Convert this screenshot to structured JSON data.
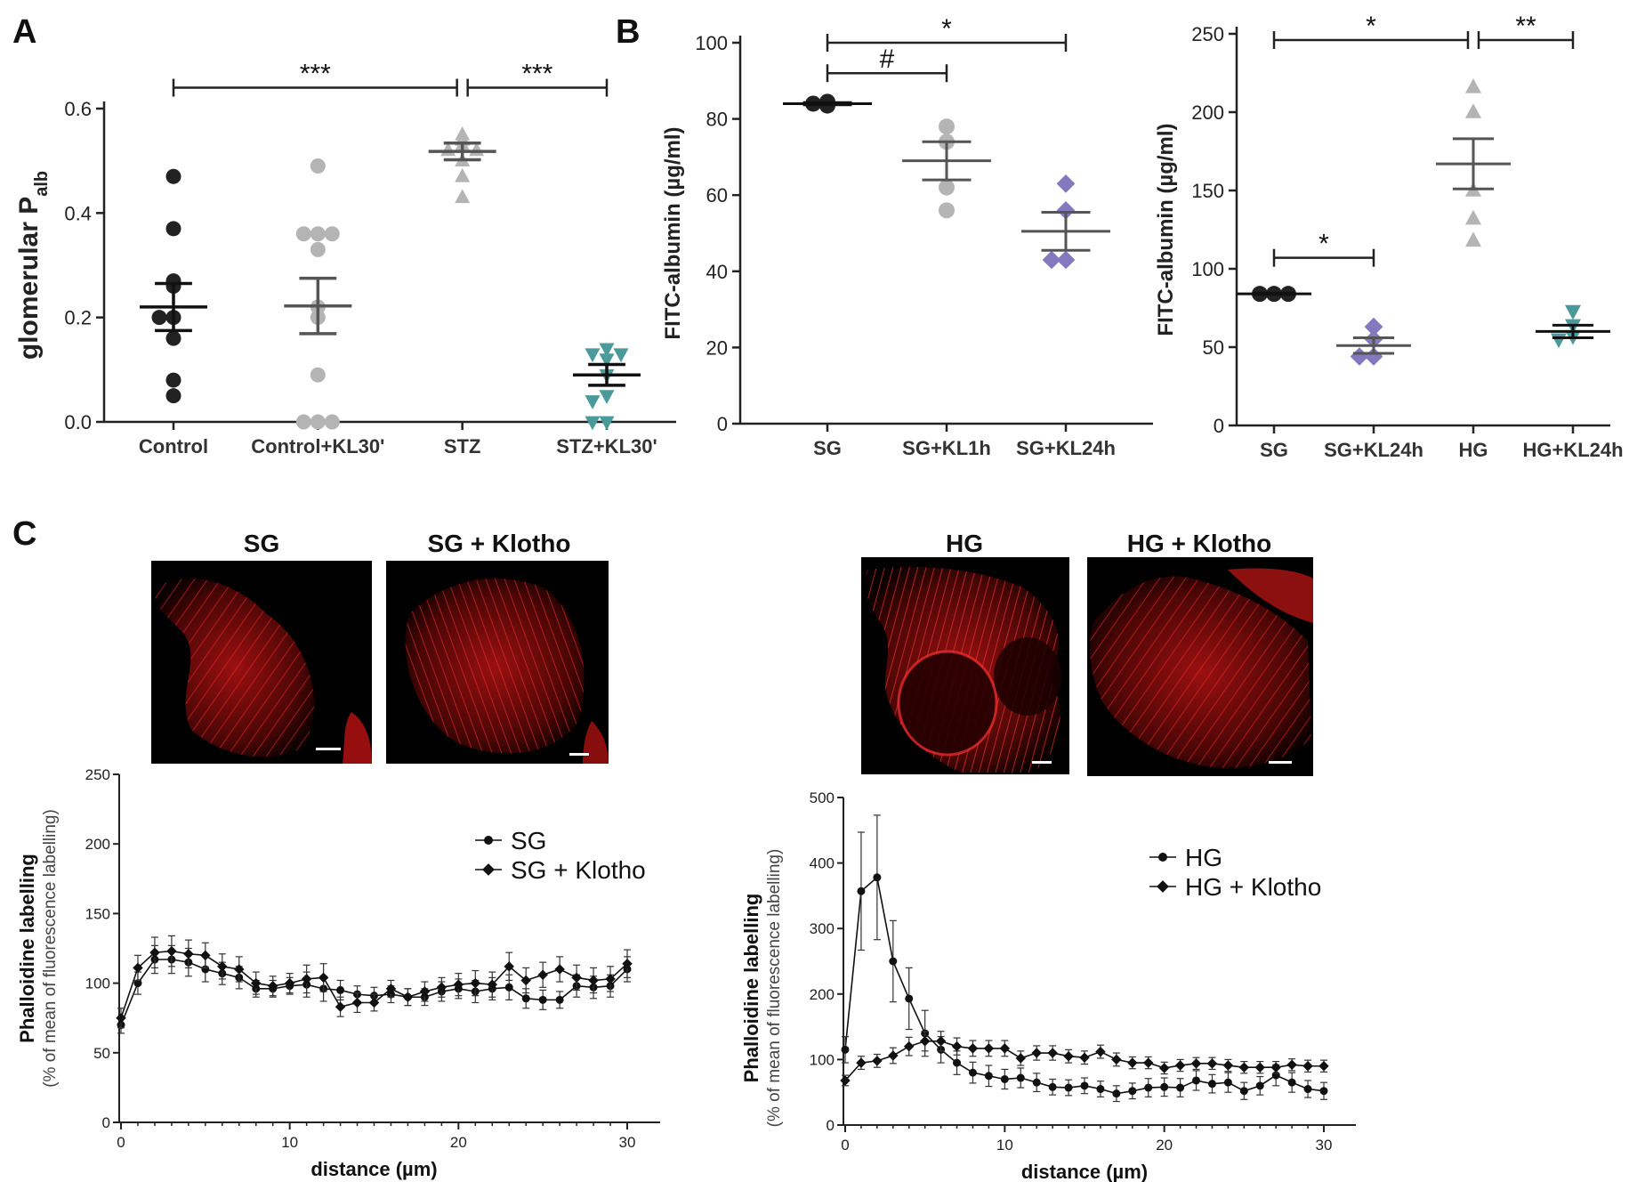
{
  "panel_letters": [
    "A",
    "B",
    "C"
  ],
  "colors": {
    "black": "#222222",
    "grey": "#b4b4b4",
    "teal": "#4a9a9c",
    "purple": "#8478bf",
    "image_red": "#e01818"
  },
  "chart_data": [
    {
      "id": "A",
      "type": "scatter",
      "title": "",
      "ylabel": "glomerular P",
      "ylabel_subscript": "alb",
      "ylim": [
        0,
        0.6
      ],
      "yticks": [
        "0.0",
        "0.2",
        "0.4",
        "0.6"
      ],
      "categories": [
        "Control",
        "Control+KL30'",
        "STZ",
        "STZ+KL30'"
      ],
      "groups": [
        {
          "name": "Control",
          "marker": "circle",
          "color": "black",
          "points": [
            0.47,
            0.37,
            0.27,
            0.26,
            0.2,
            0.2,
            0.16,
            0.08,
            0.05
          ],
          "mean": 0.22,
          "sem": 0.045
        },
        {
          "name": "Control+KL30'",
          "marker": "circle",
          "color": "grey",
          "points": [
            0.49,
            0.36,
            0.36,
            0.36,
            0.33,
            0.2,
            0.22,
            0.09,
            0.0,
            0.0,
            0.0
          ],
          "mean": 0.222,
          "sem": 0.053
        },
        {
          "name": "STZ",
          "marker": "triangle-up",
          "color": "grey",
          "points": [
            0.55,
            0.54,
            0.53,
            0.52,
            0.52,
            0.5,
            0.47,
            0.43
          ],
          "mean": 0.518,
          "sem": 0.016
        },
        {
          "name": "STZ+KL30'",
          "marker": "triangle-down",
          "color": "teal",
          "points": [
            0.14,
            0.13,
            0.13,
            0.12,
            0.09,
            0.05,
            0.04,
            0.0,
            0.0
          ],
          "mean": 0.09,
          "sem": 0.02
        }
      ],
      "brackets": [
        {
          "from": 0,
          "to": 2,
          "y": 0.64,
          "label": "***"
        },
        {
          "from": 2,
          "to": 3,
          "y": 0.64,
          "label": "***"
        }
      ]
    },
    {
      "id": "B-left",
      "type": "scatter",
      "title": "",
      "ylabel": "FITC-albumin (µg/ml)",
      "ylim": [
        0,
        100
      ],
      "yticks": [
        "0",
        "20",
        "40",
        "60",
        "80",
        "100"
      ],
      "categories": [
        "SG",
        "SG+KL1h",
        "SG+KL24h"
      ],
      "groups": [
        {
          "name": "SG",
          "marker": "circle",
          "color": "black",
          "points": [
            84.5,
            83.5,
            84
          ],
          "mean": 84,
          "sem": 0.3
        },
        {
          "name": "SG+KL1h",
          "marker": "circle",
          "color": "grey",
          "points": [
            78,
            74,
            62,
            56
          ],
          "mean": 69,
          "sem": 5
        },
        {
          "name": "SG+KL24h",
          "marker": "diamond",
          "color": "purple",
          "points": [
            63,
            56,
            43,
            43
          ],
          "mean": 50.5,
          "sem": 5
        }
      ],
      "brackets": [
        {
          "from": 0,
          "to": 1,
          "y": 92,
          "label": "#"
        },
        {
          "from": 0,
          "to": 2,
          "y": 100,
          "label": "*"
        }
      ]
    },
    {
      "id": "B-right",
      "type": "scatter",
      "title": "",
      "ylabel": "FITC-albumin (µg/ml)",
      "ylim": [
        0,
        250
      ],
      "yticks": [
        "0",
        "50",
        "100",
        "150",
        "200",
        "250"
      ],
      "categories": [
        "SG",
        "SG+KL24h",
        "HG",
        "HG+KL24h"
      ],
      "groups": [
        {
          "name": "SG",
          "marker": "circle",
          "color": "black",
          "points": [
            84,
            84,
            84
          ],
          "mean": 84,
          "sem": 0.5
        },
        {
          "name": "SG+KL24h",
          "marker": "diamond",
          "color": "purple",
          "points": [
            63,
            55,
            44,
            44
          ],
          "mean": 51,
          "sem": 5
        },
        {
          "name": "HG",
          "marker": "triangle-up",
          "color": "grey",
          "points": [
            216,
            200,
            150,
            132,
            118
          ],
          "mean": 167,
          "sem": 16
        },
        {
          "name": "HG+KL24h",
          "marker": "triangle-down",
          "color": "teal",
          "points": [
            73,
            64,
            57,
            55
          ],
          "mean": 60,
          "sem": 4
        }
      ],
      "brackets": [
        {
          "from": 0,
          "to": 2,
          "y": 246,
          "label": "*"
        },
        {
          "from": 2,
          "to": 3,
          "y": 246,
          "label": "**"
        },
        {
          "from": 0,
          "to": 1,
          "y": 107,
          "label": "*"
        }
      ]
    },
    {
      "id": "C-left",
      "type": "line",
      "title": "",
      "xlabel": "distance (µm)",
      "ylabel": "Phalloidine labelling",
      "ylabel2": "(% of mean of fluorescence labelling)",
      "xlim": [
        0,
        30
      ],
      "ylim": [
        0,
        250
      ],
      "xticks": [
        "0",
        "10",
        "20",
        "30"
      ],
      "yticks": [
        "0",
        "50",
        "100",
        "150",
        "200",
        "250"
      ],
      "x": [
        0,
        1,
        2,
        3,
        4,
        5,
        6,
        7,
        8,
        9,
        10,
        11,
        12,
        13,
        14,
        15,
        16,
        17,
        18,
        19,
        20,
        21,
        22,
        23,
        24,
        25,
        26,
        27,
        28,
        29,
        30
      ],
      "series": [
        {
          "name": "SG",
          "marker": "circle",
          "values": [
            70,
            100,
            117,
            117,
            115,
            110,
            107,
            104,
            96,
            96,
            98,
            99,
            96,
            95,
            92,
            91,
            92,
            90,
            90,
            94,
            96,
            94,
            96,
            97,
            89,
            88,
            88,
            98,
            97,
            98,
            110
          ],
          "err": [
            6,
            8,
            10,
            10,
            10,
            9,
            8,
            8,
            6,
            6,
            6,
            9,
            9,
            7,
            6,
            6,
            6,
            6,
            6,
            7,
            7,
            8,
            8,
            9,
            7,
            7,
            6,
            8,
            8,
            8,
            9
          ]
        },
        {
          "name": "SG + Klotho",
          "marker": "diamond",
          "values": [
            75,
            111,
            122,
            123,
            121,
            120,
            112,
            110,
            100,
            98,
            100,
            103,
            104,
            83,
            86,
            86,
            96,
            90,
            94,
            97,
            99,
            100,
            99,
            112,
            102,
            106,
            110,
            104,
            102,
            103,
            114
          ],
          "err": [
            7,
            9,
            11,
            11,
            10,
            9,
            9,
            9,
            8,
            7,
            7,
            10,
            10,
            7,
            7,
            6,
            6,
            6,
            7,
            7,
            8,
            9,
            9,
            10,
            9,
            9,
            9,
            9,
            9,
            9,
            10
          ]
        }
      ]
    },
    {
      "id": "C-right",
      "type": "line",
      "title": "",
      "xlabel": "distance (µm)",
      "ylabel": "Phalloidine labelling",
      "ylabel2": "(% of mean of fluorescence labelling)",
      "xlim": [
        0,
        30
      ],
      "ylim": [
        0,
        500
      ],
      "xticks": [
        "0",
        "10",
        "20",
        "30"
      ],
      "yticks": [
        "0",
        "100",
        "200",
        "300",
        "400",
        "500"
      ],
      "x": [
        0,
        1,
        2,
        3,
        4,
        5,
        6,
        7,
        8,
        9,
        10,
        11,
        12,
        13,
        14,
        15,
        16,
        17,
        18,
        19,
        20,
        21,
        22,
        23,
        24,
        25,
        26,
        27,
        28,
        29,
        30
      ],
      "series": [
        {
          "name": "HG",
          "marker": "circle",
          "values": [
            115,
            357,
            378,
            250,
            193,
            140,
            115,
            95,
            80,
            75,
            70,
            72,
            65,
            58,
            57,
            60,
            55,
            48,
            52,
            57,
            58,
            57,
            68,
            63,
            65,
            52,
            60,
            76,
            65,
            55,
            52
          ],
          "err": [
            20,
            90,
            95,
            62,
            47,
            35,
            20,
            18,
            16,
            16,
            15,
            15,
            14,
            12,
            12,
            12,
            12,
            12,
            12,
            14,
            14,
            14,
            15,
            14,
            15,
            13,
            14,
            16,
            15,
            13,
            13
          ]
        },
        {
          "name": "HG + Klotho",
          "marker": "diamond",
          "values": [
            68,
            95,
            98,
            106,
            120,
            128,
            128,
            120,
            117,
            117,
            117,
            102,
            110,
            110,
            105,
            103,
            112,
            100,
            95,
            95,
            87,
            91,
            94,
            94,
            91,
            88,
            88,
            88,
            92,
            90,
            90
          ],
          "err": [
            8,
            10,
            10,
            12,
            14,
            15,
            15,
            13,
            12,
            12,
            12,
            11,
            11,
            11,
            10,
            10,
            10,
            10,
            9,
            9,
            9,
            9,
            9,
            9,
            9,
            9,
            9,
            9,
            9,
            9,
            9
          ]
        }
      ]
    }
  ],
  "images": {
    "titles": [
      "SG",
      "SG + Klotho",
      "HG",
      "HG + Klotho"
    ]
  }
}
